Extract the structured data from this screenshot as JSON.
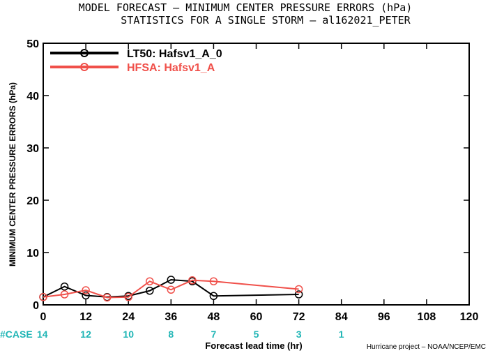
{
  "title_line1": "MODEL FORECAST – MINIMUM CENTER PRESSURE ERRORS (hPa)",
  "title_line2": "STATISTICS FOR A SINGLE STORM – al162021_PETER",
  "credit": "Hurricane project – NOAA/NCEP/EMC",
  "colors": {
    "black_series": "#000000",
    "red_series": "#f0504a",
    "case": "#1fb5b5"
  },
  "chart_data": {
    "type": "line",
    "title": "MODEL FORECAST – MINIMUM CENTER PRESSURE ERRORS (hPa)",
    "subtitle": "STATISTICS FOR A SINGLE STORM – al162021_PETER",
    "xlabel": "Forecast lead time (hr)",
    "ylabel": "MINIMUM CENTER PRESSURE ERRORS (hPa)",
    "xlim": [
      0,
      120
    ],
    "ylim": [
      0,
      50
    ],
    "x_ticks": [
      "0",
      "12",
      "24",
      "36",
      "48",
      "60",
      "72",
      "84",
      "96",
      "108",
      "120"
    ],
    "y_ticks": [
      "0",
      "10",
      "20",
      "30",
      "40",
      "50"
    ],
    "legend_position": "top-left",
    "series": [
      {
        "name": "LT50: Hafsv1_A_0",
        "color": "#000000",
        "x": [
          0,
          6,
          12,
          18,
          24,
          30,
          36,
          42,
          48,
          72
        ],
        "y": [
          1.5,
          3.5,
          1.8,
          1.5,
          1.7,
          2.7,
          4.8,
          4.5,
          1.7,
          2.0
        ]
      },
      {
        "name": "HFSA: Hafsv1_A",
        "color": "#f0504a",
        "x": [
          0,
          6,
          12,
          18,
          24,
          30,
          36,
          42,
          48,
          72
        ],
        "y": [
          1.5,
          2.0,
          2.8,
          1.4,
          1.5,
          4.5,
          2.9,
          4.7,
          4.5,
          3.0
        ]
      }
    ],
    "case_counts": {
      "label": "#CASE",
      "x": [
        0,
        12,
        24,
        36,
        48,
        60,
        72,
        84
      ],
      "values": [
        "14",
        "12",
        "10",
        "8",
        "7",
        "5",
        "3",
        "1"
      ]
    }
  }
}
